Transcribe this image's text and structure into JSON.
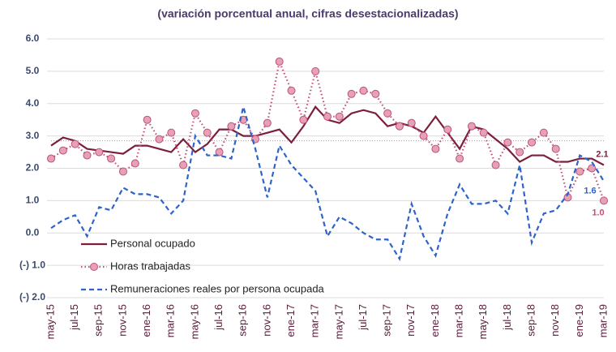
{
  "chart_data": {
    "type": "line",
    "title": "(variación porcentual anual, cifras desestacionalizadas)",
    "categories": [
      "may-15",
      null,
      "jul-15",
      null,
      "sep-15",
      null,
      "nov-15",
      null,
      "ene-16",
      null,
      "mar-16",
      null,
      "may-16",
      null,
      "jul-16",
      null,
      "sep-16",
      null,
      "nov-16",
      null,
      "ene-17",
      null,
      "mar-17",
      null,
      "may-17",
      null,
      "jul-17",
      null,
      "sep-17",
      null,
      "nov-17",
      null,
      "ene-18",
      null,
      "mar-18",
      null,
      "may-18",
      null,
      "jul-18",
      null,
      "sep-18",
      null,
      "nov-18",
      null,
      "ene-19",
      null,
      "mar-19"
    ],
    "series": [
      {
        "name": "Personal ocupado",
        "color": "#7b1f3a",
        "style": "solid",
        "values": [
          2.7,
          2.95,
          2.85,
          2.6,
          2.55,
          2.5,
          2.45,
          2.7,
          2.7,
          2.6,
          2.5,
          2.9,
          2.5,
          2.75,
          3.2,
          3.2,
          3.0,
          3.0,
          3.1,
          3.2,
          2.8,
          3.3,
          3.9,
          3.5,
          3.4,
          3.7,
          3.8,
          3.7,
          3.3,
          3.4,
          3.3,
          3.1,
          3.6,
          3.1,
          2.6,
          3.3,
          3.2,
          2.9,
          2.6,
          2.2,
          2.4,
          2.4,
          2.2,
          2.2,
          2.3,
          2.3,
          2.1
        ],
        "value_labels": [
          null,
          null,
          null,
          null,
          null,
          null,
          null,
          null,
          null,
          null,
          null,
          null,
          null,
          null,
          null,
          null,
          null,
          null,
          null,
          null,
          null,
          null,
          null,
          null,
          null,
          null,
          null,
          null,
          null,
          null,
          null,
          null,
          null,
          null,
          null,
          null,
          null,
          null,
          null,
          null,
          null,
          null,
          null,
          null,
          null,
          null,
          "2.1"
        ]
      },
      {
        "name": "Horas trabajadas",
        "color": "#c0507a",
        "marker_fill": "#e8a0b4",
        "style": "dotted",
        "markers": true,
        "values": [
          2.3,
          2.55,
          2.75,
          2.4,
          2.5,
          2.3,
          1.9,
          2.15,
          3.5,
          2.9,
          3.1,
          2.1,
          3.7,
          3.1,
          2.5,
          3.3,
          3.5,
          2.9,
          3.4,
          5.3,
          4.4,
          3.5,
          5.0,
          3.6,
          3.6,
          4.3,
          4.4,
          4.3,
          3.7,
          3.3,
          3.4,
          3.0,
          2.6,
          3.2,
          2.3,
          3.3,
          3.1,
          2.1,
          2.8,
          2.5,
          2.8,
          3.1,
          2.6,
          1.1,
          1.9,
          2.0,
          1.0
        ],
        "value_labels": [
          null,
          null,
          null,
          null,
          null,
          null,
          null,
          null,
          null,
          null,
          null,
          null,
          null,
          null,
          null,
          null,
          null,
          null,
          null,
          null,
          null,
          null,
          null,
          null,
          null,
          null,
          null,
          null,
          null,
          null,
          null,
          null,
          null,
          null,
          null,
          null,
          null,
          null,
          null,
          null,
          null,
          null,
          null,
          null,
          null,
          null,
          "1.0"
        ]
      },
      {
        "name": "Remuneraciones reales por persona ocupada",
        "color": "#2e63c9",
        "style": "dashed",
        "values": [
          0.15,
          0.4,
          0.55,
          -0.1,
          0.8,
          0.7,
          1.4,
          1.2,
          1.2,
          1.1,
          0.6,
          1.0,
          3.0,
          2.4,
          2.4,
          2.3,
          3.9,
          2.6,
          1.1,
          2.7,
          2.1,
          1.7,
          1.3,
          -0.1,
          0.5,
          0.3,
          0.0,
          -0.2,
          -0.2,
          -0.8,
          0.9,
          -0.1,
          -0.7,
          0.6,
          1.5,
          0.9,
          0.9,
          1.0,
          0.6,
          2.1,
          -0.3,
          0.6,
          0.7,
          1.2,
          2.4,
          2.2,
          1.6
        ],
        "value_labels": [
          null,
          null,
          null,
          null,
          null,
          null,
          null,
          null,
          null,
          null,
          null,
          null,
          null,
          null,
          null,
          null,
          null,
          null,
          null,
          null,
          null,
          null,
          null,
          null,
          null,
          null,
          null,
          null,
          null,
          null,
          null,
          null,
          null,
          null,
          null,
          null,
          null,
          null,
          null,
          null,
          null,
          null,
          null,
          null,
          null,
          null,
          "1.6"
        ]
      }
    ],
    "reference_line": {
      "value": 2.85,
      "color": "#e07aa0"
    },
    "ylim": [
      -2,
      6
    ],
    "yticks": [
      {
        "value": -2,
        "label": "(-) 2.0"
      },
      {
        "value": -1,
        "label": "(-) 1.0"
      },
      {
        "value": 0,
        "label": "0.0"
      },
      {
        "value": 1,
        "label": "1.0"
      },
      {
        "value": 2,
        "label": "2.0"
      },
      {
        "value": 3,
        "label": "3.0"
      },
      {
        "value": 4,
        "label": "4.0"
      },
      {
        "value": 5,
        "label": "5.0"
      },
      {
        "value": 6,
        "label": "6.0"
      }
    ],
    "grid": true,
    "legend": "lower left"
  }
}
